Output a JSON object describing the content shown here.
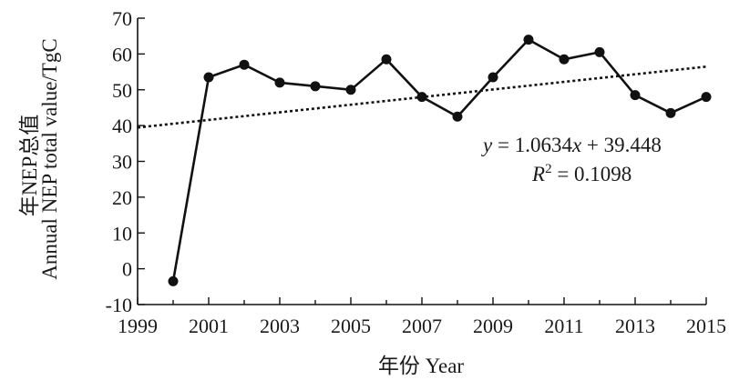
{
  "chart_data": {
    "type": "line",
    "xlabel": "年份 Year",
    "ylabel_line1": "年NEP总值",
    "ylabel_line2": "Annual NEP total  value/TgC",
    "xlim": [
      1999,
      2015
    ],
    "ylim": [
      -10,
      70
    ],
    "x_ticks": [
      1999,
      2001,
      2003,
      2005,
      2007,
      2009,
      2011,
      2013,
      2015
    ],
    "y_ticks": [
      -10,
      0,
      10,
      20,
      30,
      40,
      50,
      60,
      70
    ],
    "grid": false,
    "series": [
      {
        "x": [
          2000,
          2001,
          2002,
          2003,
          2004,
          2005,
          2006,
          2007,
          2008,
          2009,
          2010,
          2011,
          2012,
          2013,
          2014,
          2015
        ],
        "y": [
          -3.5,
          53.5,
          57,
          52,
          51,
          50,
          58.5,
          48,
          42.5,
          53.5,
          64,
          58.5,
          60.5,
          48.5,
          43.5,
          48
        ],
        "style": "solid",
        "marker": "circle",
        "color": "#111111"
      }
    ],
    "trendline": {
      "style": "dotted",
      "slope": 1.0634,
      "intercept": 39.448,
      "x0": 1999,
      "color": "#111111"
    },
    "annotation": {
      "equation": "y = 1.0634x + 39.448",
      "r_squared": "R2 = 0.1098"
    }
  }
}
